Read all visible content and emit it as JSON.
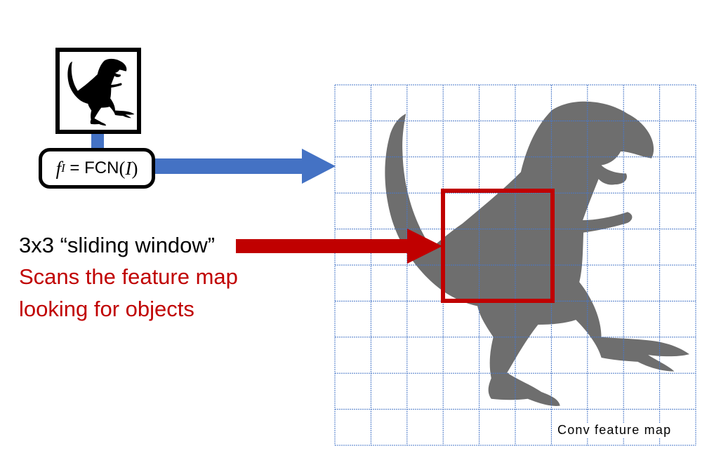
{
  "fcn_label": {
    "var_f": "f",
    "var_f_subscript": "I",
    "equals": " = ",
    "func_name": "FCN",
    "paren_open": "(",
    "var_arg": "I",
    "paren_close": ")"
  },
  "sliding_window": {
    "title": "3x3 “sliding window”",
    "line1": "Scans the feature map",
    "line2": "looking for objects"
  },
  "feature_map": {
    "label": "Conv feature map",
    "grid_cols": 10,
    "grid_rows": 10,
    "window_size": "3x3"
  },
  "colors": {
    "grid": "#4a78c8",
    "arrow_blue": "#4472c4",
    "arrow_red": "#c00000",
    "text_red": "#c00000",
    "dino_fill": "#6e6e6e",
    "thumb_fill": "#000000"
  },
  "icons": {
    "thumbnail": "dinosaur-silhouette-icon",
    "feature_map_image": "dinosaur-silhouette-icon"
  }
}
